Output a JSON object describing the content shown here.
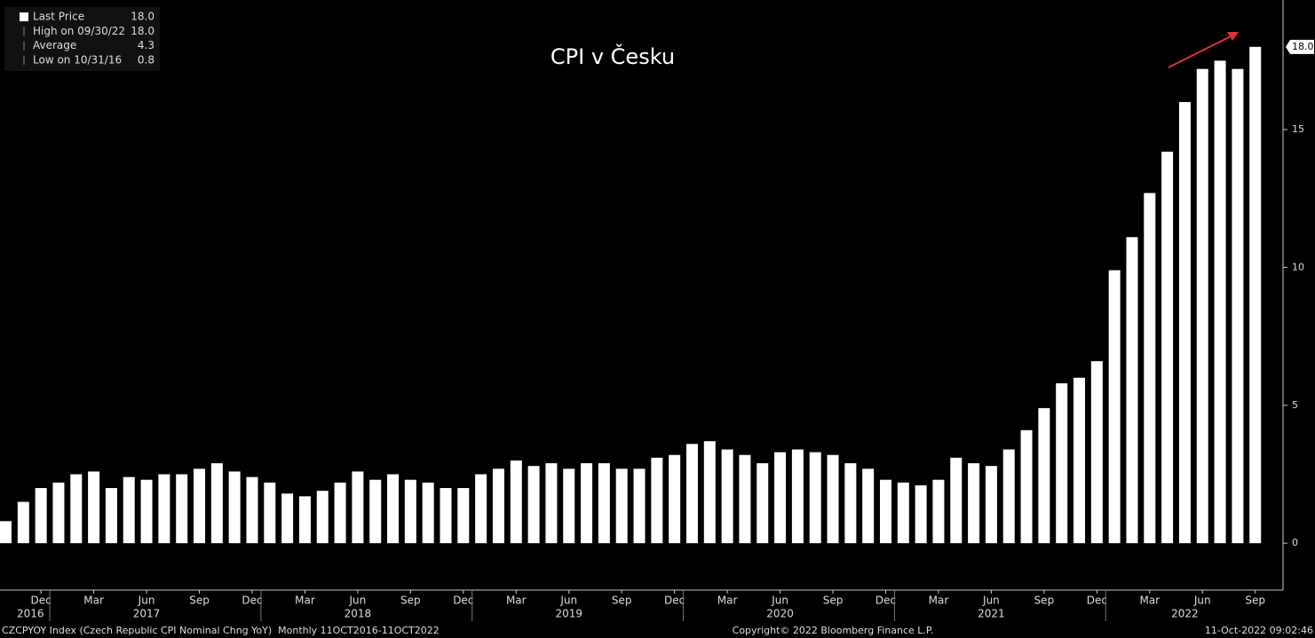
{
  "chart_data": {
    "type": "bar",
    "title": "CPI v Česku",
    "categories": [
      null,
      null,
      "Dec",
      null,
      null,
      "Mar",
      null,
      null,
      "Jun",
      null,
      null,
      "Sep",
      null,
      null,
      "Dec",
      null,
      null,
      "Mar",
      null,
      null,
      "Jun",
      null,
      null,
      "Sep",
      null,
      null,
      "Dec",
      null,
      null,
      "Mar",
      null,
      null,
      "Jun",
      null,
      null,
      "Sep",
      null,
      null,
      "Dec",
      null,
      null,
      "Mar",
      null,
      null,
      "Jun",
      null,
      null,
      "Sep",
      null,
      null,
      "Dec",
      null,
      null,
      "Mar",
      null,
      null,
      "Jun",
      null,
      null,
      "Sep",
      null,
      null,
      "Dec",
      null,
      null,
      "Mar",
      null,
      null,
      "Jun",
      null,
      null,
      "Sep"
    ],
    "year_categories": [
      null,
      "2016",
      null,
      null,
      null,
      null,
      null,
      null,
      "2017",
      null,
      null,
      null,
      null,
      null,
      null,
      null,
      null,
      null,
      null,
      null,
      "2018",
      null,
      null,
      null,
      null,
      null,
      null,
      null,
      null,
      null,
      null,
      null,
      "2019",
      null,
      null,
      null,
      null,
      null,
      null,
      null,
      null,
      null,
      null,
      null,
      "2020",
      null,
      null,
      null,
      null,
      null,
      null,
      null,
      null,
      null,
      null,
      null,
      "2021",
      null,
      null,
      null,
      null,
      null,
      null,
      null,
      null,
      null,
      null,
      "2022",
      null,
      null,
      null,
      null
    ],
    "series": [
      {
        "name": "Last Price",
        "color": "#ffffff",
        "values": [
          0.8,
          1.5,
          2.0,
          2.2,
          2.5,
          2.6,
          2.0,
          2.4,
          2.3,
          2.5,
          2.5,
          2.7,
          2.9,
          2.6,
          2.4,
          2.2,
          1.8,
          1.7,
          1.9,
          2.2,
          2.6,
          2.3,
          2.5,
          2.3,
          2.2,
          2.0,
          2.0,
          2.5,
          2.7,
          3.0,
          2.8,
          2.9,
          2.7,
          2.9,
          2.9,
          2.7,
          2.7,
          3.1,
          3.2,
          3.6,
          3.7,
          3.4,
          3.2,
          2.9,
          3.3,
          3.4,
          3.3,
          3.2,
          2.9,
          2.7,
          2.3,
          2.2,
          2.1,
          2.3,
          3.1,
          2.9,
          2.8,
          3.4,
          4.1,
          4.9,
          5.8,
          6.0,
          6.6,
          9.9,
          11.1,
          12.7,
          14.2,
          16.0,
          17.2,
          17.5,
          17.2,
          18.0
        ]
      }
    ],
    "last_value_label": "18.0",
    "ylim": [
      -1.7,
      19.7
    ],
    "yticks": [
      0,
      5,
      10,
      15
    ],
    "stats": [
      {
        "label": "Last Price",
        "value": "18.0"
      },
      {
        "label": "High on 09/30/22",
        "value": "18.0"
      },
      {
        "label": "Average",
        "value": "4.3"
      },
      {
        "label": "Low on 10/31/16",
        "value": "0.8"
      }
    ],
    "footer_left": "CZCPYOY Index (Czech Republic CPI Nominal Chng YoY)  Monthly 11OCT2016-11OCT2022",
    "footer_center": "Copyright© 2022 Bloomberg Finance L.P.",
    "footer_right": "11-Oct-2022 09:02:46"
  }
}
